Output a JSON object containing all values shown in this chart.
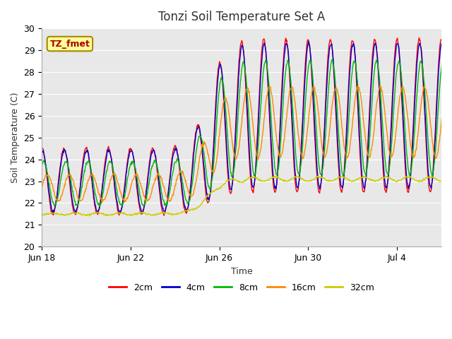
{
  "title": "Tonzi Soil Temperature Set A",
  "xlabel": "Time",
  "ylabel": "Soil Temperature (C)",
  "ylim": [
    20.0,
    30.0
  ],
  "yticks": [
    20.0,
    21.0,
    22.0,
    23.0,
    24.0,
    25.0,
    26.0,
    27.0,
    28.0,
    29.0,
    30.0
  ],
  "xtick_labels": [
    "Jun 18",
    "Jun 22",
    "Jun 26",
    "Jun 30",
    "Jul 4"
  ],
  "xtick_positions": [
    0,
    4,
    8,
    12,
    16
  ],
  "n_days": 19,
  "series_colors": [
    "#ff0000",
    "#0000cc",
    "#00bb00",
    "#ff8800",
    "#cccc00"
  ],
  "series_labels": [
    "2cm",
    "4cm",
    "8cm",
    "16cm",
    "32cm"
  ],
  "annotation_text": "TZ_fmet",
  "annotation_bg": "#ffff99",
  "annotation_border": "#aa8800",
  "annotation_text_color": "#aa0000",
  "fig_bg_color": "#ffffff",
  "plot_bg_color": "#e8e8e8",
  "grid_color": "#ffffff",
  "title_fontsize": 12,
  "axis_label_fontsize": 9,
  "tick_fontsize": 9,
  "legend_fontsize": 9
}
